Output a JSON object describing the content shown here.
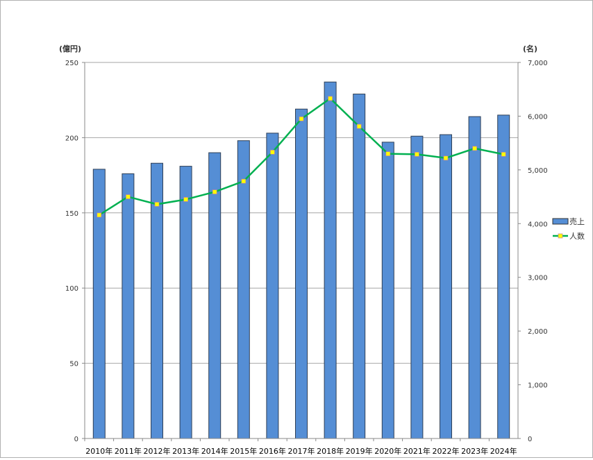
{
  "chart_data": {
    "type": "bar+line",
    "categories": [
      "2010年",
      "2011年",
      "2012年",
      "2013年",
      "2014年",
      "2015年",
      "2016年",
      "2017年",
      "2018年",
      "2019年",
      "2020年",
      "2021年",
      "2022年",
      "2023年",
      "2024年"
    ],
    "series": [
      {
        "name": "売上",
        "type": "bar",
        "axis": "left",
        "color": "#558ed5",
        "values": [
          179,
          176,
          183,
          181,
          190,
          198,
          203,
          219,
          237,
          229,
          197,
          201,
          202,
          214,
          215
        ]
      },
      {
        "name": "人数",
        "type": "line",
        "axis": "right",
        "color": "#00b050",
        "marker_color": "#ffff00",
        "values": [
          4160,
          4500,
          4360,
          4450,
          4590,
          4790,
          5330,
          5950,
          6330,
          5810,
          5300,
          5290,
          5220,
          5400,
          5290
        ]
      }
    ],
    "left_axis": {
      "unit_label": "(億円)",
      "ylim": [
        0,
        250
      ],
      "ticks": [
        "0",
        "50",
        "100",
        "150",
        "200",
        "250"
      ]
    },
    "right_axis": {
      "unit_label": "(名)",
      "ylim": [
        0,
        7000
      ],
      "ticks": [
        "0",
        "1,000",
        "2,000",
        "3,000",
        "4,000",
        "5,000",
        "6,000",
        "7,000"
      ]
    },
    "grid": true,
    "legend_position": "right"
  }
}
